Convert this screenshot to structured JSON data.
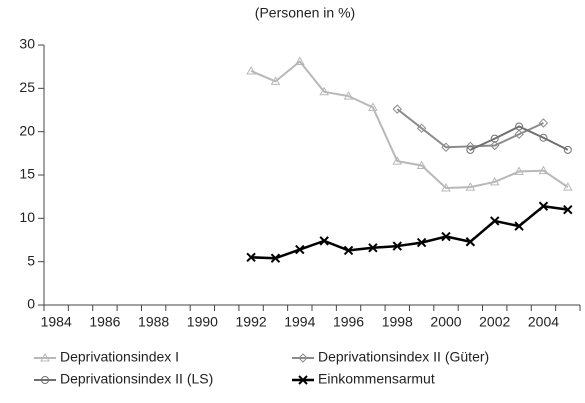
{
  "chart_data": {
    "type": "line",
    "subtitle": "(Personen in %)",
    "categories": [
      "1984",
      null,
      "1986",
      null,
      "1988",
      null,
      "1990",
      null,
      "1992",
      null,
      "1994",
      null,
      "1996",
      null,
      "1998",
      null,
      "2000",
      null,
      "2002",
      null,
      "2004",
      null
    ],
    "ylim": [
      0,
      30
    ],
    "yticks": [
      0,
      5,
      10,
      15,
      20,
      25,
      30
    ],
    "series": [
      {
        "name": "Deprivationsindex I",
        "color": "#b8b8b8",
        "marker": "triangle",
        "values": [
          null,
          null,
          null,
          null,
          null,
          null,
          null,
          null,
          27,
          25.8,
          28.1,
          24.6,
          24.1,
          22.8,
          16.6,
          16.1,
          13.5,
          13.6,
          14.2,
          15.4,
          15.5,
          13.6
        ]
      },
      {
        "name": "Deprivationsindex II (Güter)",
        "color": "#8c8c8c",
        "marker": "diamond",
        "values": [
          null,
          null,
          null,
          null,
          null,
          null,
          null,
          null,
          null,
          null,
          null,
          null,
          null,
          null,
          22.6,
          20.4,
          18.2,
          18.3,
          18.4,
          19.7,
          21.0,
          null
        ]
      },
      {
        "name": "Deprivationsindex II (LS)",
        "color": "#707070",
        "marker": "circle",
        "values": [
          null,
          null,
          null,
          null,
          null,
          null,
          null,
          null,
          null,
          null,
          null,
          null,
          null,
          null,
          null,
          null,
          null,
          17.9,
          19.2,
          20.6,
          19.3,
          17.9
        ]
      },
      {
        "name": "Einkommensarmut",
        "color": "#000000",
        "marker": "x",
        "values": [
          null,
          null,
          null,
          null,
          null,
          null,
          null,
          null,
          5.5,
          5.4,
          6.4,
          7.4,
          6.3,
          6.6,
          6.8,
          7.2,
          7.9,
          7.3,
          9.7,
          9.1,
          11.4,
          11.0
        ]
      }
    ]
  }
}
